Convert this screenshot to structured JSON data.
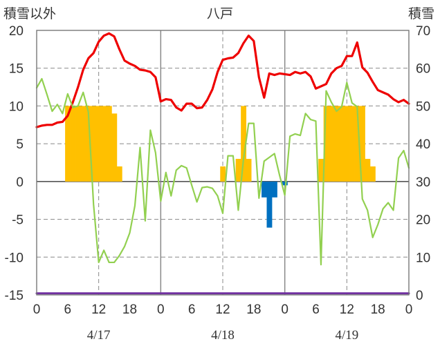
{
  "chart_data": {
    "type": "line",
    "title": "八戸",
    "y_left_label": "積雪以外",
    "y_right_label": "積雪",
    "y_left_range": [
      -15,
      20
    ],
    "y_left_ticks": [
      "20",
      "15",
      "10",
      "5",
      "0",
      "-5",
      "-10",
      "-15"
    ],
    "y_right_range": [
      0,
      70
    ],
    "y_right_ticks": [
      "70",
      "60",
      "50",
      "40",
      "30",
      "20",
      "10",
      "0"
    ],
    "x_range": [
      0,
      72
    ],
    "x_hour_ticks": [
      "0",
      "6",
      "12",
      "18",
      "0",
      "6",
      "12",
      "18",
      "0",
      "6",
      "12",
      "18",
      "0"
    ],
    "date_labels": [
      "4/17",
      "4/18",
      "4/19"
    ],
    "series": [
      {
        "key": "red",
        "color": "#ee0000",
        "points": [
          [
            0,
            7.2
          ],
          [
            1,
            7.4
          ],
          [
            2,
            7.5
          ],
          [
            3,
            7.5
          ],
          [
            4,
            7.8
          ],
          [
            5,
            7.9
          ],
          [
            6,
            8.7
          ],
          [
            7,
            10.5
          ],
          [
            8,
            12.5
          ],
          [
            9,
            14.8
          ],
          [
            10,
            16.3
          ],
          [
            11,
            17.0
          ],
          [
            12,
            18.5
          ],
          [
            13,
            19.3
          ],
          [
            14,
            19.6
          ],
          [
            15,
            19.2
          ],
          [
            16,
            17.5
          ],
          [
            17,
            16.0
          ],
          [
            18,
            15.6
          ],
          [
            19,
            15.3
          ],
          [
            20,
            14.8
          ],
          [
            21,
            14.7
          ],
          [
            22,
            14.5
          ],
          [
            23,
            13.8
          ],
          [
            24,
            10.6
          ],
          [
            25,
            10.9
          ],
          [
            26,
            10.8
          ],
          [
            27,
            9.8
          ],
          [
            28,
            9.4
          ],
          [
            29,
            10.3
          ],
          [
            30,
            10.3
          ],
          [
            31,
            9.7
          ],
          [
            32,
            9.8
          ],
          [
            33,
            10.8
          ],
          [
            34,
            12.2
          ],
          [
            35,
            14.5
          ],
          [
            36,
            16.1
          ],
          [
            37,
            16.3
          ],
          [
            38,
            16.4
          ],
          [
            39,
            17.0
          ],
          [
            40,
            18.3
          ],
          [
            41,
            19.3
          ],
          [
            42,
            18.6
          ],
          [
            43,
            13.8
          ],
          [
            44,
            11.1
          ],
          [
            45,
            14.3
          ],
          [
            46,
            14.1
          ],
          [
            47,
            14.3
          ],
          [
            48,
            14.2
          ],
          [
            49,
            14.1
          ],
          [
            50,
            14.5
          ],
          [
            51,
            14.3
          ],
          [
            52,
            14.5
          ],
          [
            53,
            13.9
          ],
          [
            54,
            12.3
          ],
          [
            55,
            12.6
          ],
          [
            56,
            12.9
          ],
          [
            57,
            14.3
          ],
          [
            58,
            15.0
          ],
          [
            59,
            15.3
          ],
          [
            60,
            16.6
          ],
          [
            61,
            16.6
          ],
          [
            62,
            18.4
          ],
          [
            63,
            15.1
          ],
          [
            64,
            14.4
          ],
          [
            65,
            13.2
          ],
          [
            66,
            12.1
          ],
          [
            67,
            11.8
          ],
          [
            68,
            11.5
          ],
          [
            69,
            10.9
          ],
          [
            70,
            10.5
          ],
          [
            71,
            10.8
          ],
          [
            72,
            10.3
          ]
        ]
      },
      {
        "key": "green",
        "color": "#92d050",
        "points": [
          [
            0,
            12.4
          ],
          [
            1,
            13.6
          ],
          [
            2,
            11.5
          ],
          [
            3,
            9.3
          ],
          [
            4,
            10.2
          ],
          [
            5,
            9.0
          ],
          [
            6,
            11.6
          ],
          [
            7,
            9.8
          ],
          [
            8,
            10.0
          ],
          [
            9,
            11.8
          ],
          [
            10,
            9.2
          ],
          [
            11,
            -3.0
          ],
          [
            12,
            -10.7
          ],
          [
            13,
            -9.1
          ],
          [
            14,
            -10.7
          ],
          [
            15,
            -10.7
          ],
          [
            16,
            -9.8
          ],
          [
            17,
            -8.6
          ],
          [
            18,
            -6.8
          ],
          [
            19,
            -3.2
          ],
          [
            20,
            4.5
          ],
          [
            21,
            -5.2
          ],
          [
            22,
            6.8
          ],
          [
            23,
            3.8
          ],
          [
            24,
            -2.6
          ],
          [
            25,
            1.2
          ],
          [
            26,
            -1.9
          ],
          [
            27,
            1.5
          ],
          [
            28,
            2.1
          ],
          [
            29,
            1.8
          ],
          [
            30,
            -0.5
          ],
          [
            31,
            -2.7
          ],
          [
            32,
            -0.8
          ],
          [
            33,
            -0.7
          ],
          [
            34,
            -0.9
          ],
          [
            35,
            -1.9
          ],
          [
            36,
            -4.2
          ],
          [
            37,
            3.4
          ],
          [
            38,
            3.4
          ],
          [
            39,
            -3.8
          ],
          [
            40,
            2.9
          ],
          [
            41,
            7.7
          ],
          [
            42,
            7.7
          ],
          [
            43,
            -2.2
          ],
          [
            44,
            2.7
          ],
          [
            45,
            3.2
          ],
          [
            46,
            3.7
          ],
          [
            47,
            0.8
          ],
          [
            48,
            -1.8
          ],
          [
            49,
            6.0
          ],
          [
            50,
            6.3
          ],
          [
            51,
            6.1
          ],
          [
            52,
            9.0
          ],
          [
            53,
            8.2
          ],
          [
            54,
            8.0
          ],
          [
            55,
            -11.0
          ],
          [
            56,
            12.0
          ],
          [
            57,
            10.5
          ],
          [
            58,
            9.3
          ],
          [
            59,
            9.9
          ],
          [
            60,
            13.1
          ],
          [
            61,
            10.4
          ],
          [
            62,
            9.9
          ],
          [
            63,
            -2.3
          ],
          [
            64,
            -3.8
          ],
          [
            65,
            -7.4
          ],
          [
            66,
            -5.7
          ],
          [
            67,
            -3.6
          ],
          [
            68,
            -2.8
          ],
          [
            69,
            -3.8
          ],
          [
            70,
            3.1
          ],
          [
            71,
            4.1
          ],
          [
            72,
            1.8
          ]
        ]
      },
      {
        "key": "purple",
        "color": "#7030a0",
        "points": [
          [
            0,
            -14.8
          ],
          [
            72,
            -14.8
          ]
        ]
      }
    ],
    "bars_orange": {
      "color": "#ffc000",
      "bars": [
        [
          6,
          10
        ],
        [
          7,
          10
        ],
        [
          8,
          10
        ],
        [
          9,
          10
        ],
        [
          10,
          10
        ],
        [
          11,
          10
        ],
        [
          12,
          10
        ],
        [
          13,
          10
        ],
        [
          14,
          10
        ],
        [
          15,
          9
        ],
        [
          16,
          2
        ],
        [
          36,
          2
        ],
        [
          39,
          3
        ],
        [
          40,
          10
        ],
        [
          41,
          3
        ],
        [
          55,
          3
        ],
        [
          56,
          10
        ],
        [
          57,
          10
        ],
        [
          58,
          10
        ],
        [
          59,
          10
        ],
        [
          60,
          10
        ],
        [
          61,
          10
        ],
        [
          62,
          10
        ],
        [
          63,
          10
        ],
        [
          64,
          3
        ],
        [
          65,
          2
        ]
      ]
    },
    "bars_blue": {
      "color": "#0070c0",
      "bars": [
        [
          44,
          -2.1
        ],
        [
          45,
          -6.1
        ],
        [
          46,
          -2.1
        ],
        [
          48,
          -0.5
        ]
      ]
    }
  }
}
